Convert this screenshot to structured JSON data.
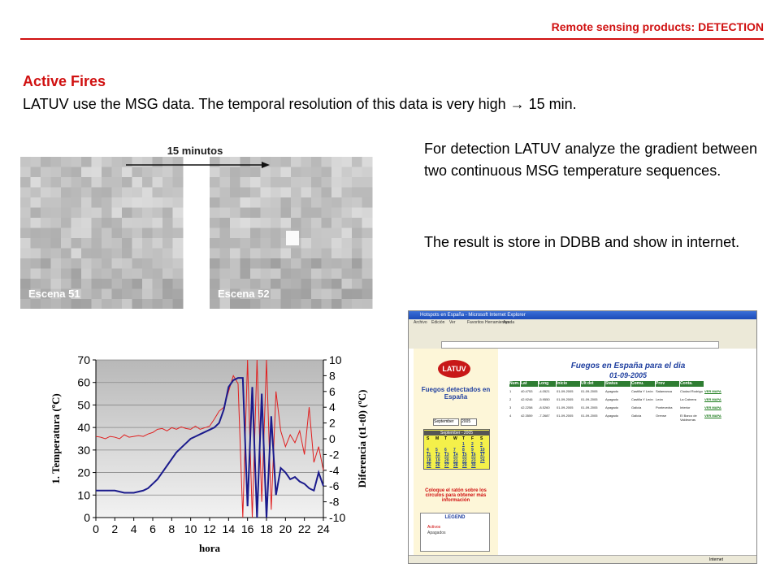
{
  "header": {
    "prefix": "Remote sensing products: ",
    "emphasis": "DETECTION"
  },
  "title": "Active Fires",
  "intro": "LATUV use the MSG data. The temporal resolution of this data is very high → 15 min.",
  "paragraphs": [
    "For detection LATUV analyze the gradient between two continuous MSG temperature sequences.",
    "The result is store in DDBB and show in internet."
  ],
  "images": {
    "interval": "15 minutos",
    "scene_a": "Escena 51",
    "scene_b": "Escena 52"
  },
  "chart_data": {
    "type": "line",
    "xlabel": "hora",
    "ylabel": "1. Temperatura (ºC)",
    "y2label": "Diferencia (t1-t0) (ºC)",
    "x": [
      0,
      0.5,
      1,
      1.5,
      2,
      2.5,
      3,
      3.5,
      4,
      4.5,
      5,
      5.5,
      6,
      6.5,
      7,
      7.5,
      8,
      8.5,
      9,
      9.5,
      10,
      10.5,
      11,
      11.5,
      12,
      12.5,
      13,
      13.5,
      14,
      14.5,
      15,
      15.5,
      16,
      16.5,
      17,
      17.5,
      18,
      18.5,
      19,
      19.5,
      20,
      20.5,
      21,
      21.5,
      22,
      22.5,
      23,
      23.5,
      24
    ],
    "series": [
      {
        "color": "#1a1a8c",
        "values": [
          12,
          12,
          12,
          12,
          12,
          11.5,
          11,
          11,
          11,
          11.5,
          12,
          13,
          15,
          17,
          20,
          23,
          26,
          29,
          31,
          33,
          35,
          36,
          37,
          38,
          39,
          40,
          42,
          48,
          58,
          61,
          62,
          62,
          5,
          58,
          0,
          55,
          0,
          45,
          10,
          22,
          20,
          17,
          18,
          16,
          15,
          13,
          12,
          20,
          14
        ]
      },
      {
        "color": "#e02020",
        "axis": "y2",
        "values": [
          0.3,
          0.2,
          0,
          0.3,
          0.2,
          0,
          0.5,
          0.2,
          0.3,
          0.4,
          0.3,
          0.6,
          0.8,
          1.2,
          1.3,
          1,
          1.4,
          1.2,
          1.5,
          1.3,
          1.2,
          1.6,
          1.2,
          1.4,
          1.6,
          2.5,
          3.5,
          4,
          6,
          8,
          7,
          -10,
          10,
          -10,
          10,
          -8,
          10,
          -9,
          6,
          1,
          -1,
          0.5,
          -0.5,
          1,
          -2,
          4,
          -3,
          -1,
          -4
        ]
      }
    ],
    "xlim": [
      0,
      24
    ],
    "xticks": [
      0,
      2,
      4,
      6,
      8,
      10,
      12,
      14,
      16,
      18,
      20,
      22,
      24
    ],
    "ylim": [
      0,
      70
    ],
    "yticks": [
      0,
      10,
      20,
      30,
      40,
      50,
      60,
      70
    ],
    "y2lim": [
      -10,
      10
    ],
    "y2ticks": [
      -10,
      -8,
      -6,
      -4,
      -2,
      0,
      2,
      4,
      6,
      8,
      10
    ],
    "grid": true
  },
  "screenshot": {
    "window_title": "Hotspots en España - Microsoft Internet Explorer",
    "menu": [
      "Archivo",
      "Edición",
      "Ver",
      "Favoritos",
      "Herramientas",
      "Ayuda"
    ],
    "logo": "LATUV",
    "side_title": "Fuegos detectados en España",
    "month": "September",
    "year": "2005",
    "calendar_title": "September - 2005",
    "weekdays": [
      "S",
      "M",
      "T",
      "W",
      "T",
      "F",
      "S"
    ],
    "weeks": [
      [
        null,
        null,
        null,
        null,
        "1",
        "2",
        "3"
      ],
      [
        "4",
        "5",
        "6",
        "7",
        "8",
        "9",
        "10"
      ],
      [
        "11",
        "12",
        "13",
        "14",
        "15",
        "16",
        "17"
      ],
      [
        "18",
        "19",
        "20",
        "21",
        "22",
        "23",
        "24"
      ],
      [
        "25",
        "26",
        "27",
        "28",
        "29",
        "30",
        null
      ]
    ],
    "hint": "Coloque el ratón sobre los círculos para obtener más información",
    "legend_title": "LEGEND",
    "legend": [
      "Activos",
      "Apagados"
    ],
    "main_title": "Fuegos en España para el dia",
    "date": "01-09-2005",
    "columns": [
      "Num.",
      "Lat",
      "Long",
      "Inicio",
      "Ult det",
      "Status",
      "Comu.",
      "Prov",
      "Conta."
    ],
    "rows": [
      [
        "1",
        "40.4753",
        "-4.0521",
        "01-09-2005",
        "01-09-2005",
        "Apagado",
        "Castilla Y León",
        "Salamanca",
        "Ciudad Rodrigo",
        "VER MAPA"
      ],
      [
        "2",
        "42.9246",
        "-5.9550",
        "01-09-2005",
        "01-09-2005",
        "Apagado",
        "Castilla Y León",
        "León",
        "La Cabrera",
        "VER MAPA"
      ],
      [
        "3",
        "42.2258",
        "-8.5260",
        "01-09-2005",
        "01-09-2005",
        "Apagado",
        "Galicia",
        "Pontevedra",
        "Interior",
        "VER MAPA"
      ],
      [
        "4",
        "42.3559",
        "-7.2687",
        "01-09-2005",
        "01-09-2005",
        "Apagado",
        "Galicia",
        "Orense",
        "El Barco de Valdeorras",
        "VER MAPA"
      ]
    ],
    "status": "Internet"
  }
}
